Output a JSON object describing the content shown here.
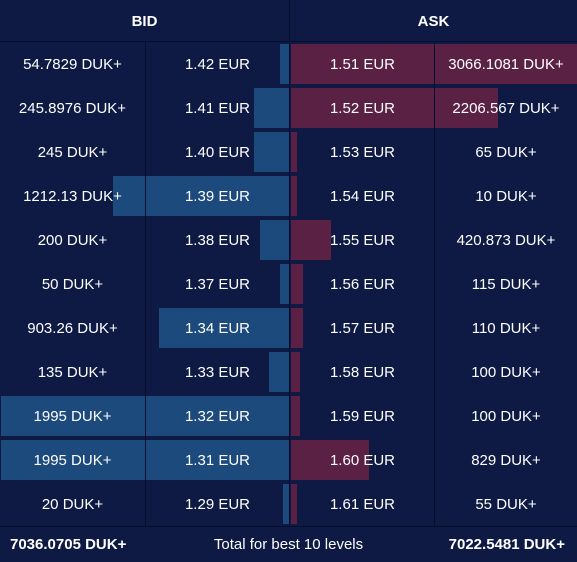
{
  "header": {
    "bid_label": "BID",
    "ask_label": "ASK"
  },
  "colors": {
    "background": "#0e1a44",
    "bid_bar": "#1c4a7c",
    "ask_bar": "#5a2145"
  },
  "rows": [
    {
      "bid_volume": "54.7829 DUK+",
      "bid_price": "1.42 EUR",
      "ask_price": "1.51 EUR",
      "ask_volume": "3066.1081 DUK+",
      "bid_depth": 0.03,
      "ask_depth": 1.0
    },
    {
      "bid_volume": "245.8976 DUK+",
      "bid_price": "1.41 EUR",
      "ask_price": "1.52 EUR",
      "ask_volume": "2206.567 DUK+",
      "bid_depth": 0.12,
      "ask_depth": 0.72
    },
    {
      "bid_volume": "245 DUK+",
      "bid_price": "1.40 EUR",
      "ask_price": "1.53 EUR",
      "ask_volume": "65 DUK+",
      "bid_depth": 0.12,
      "ask_depth": 0.02
    },
    {
      "bid_volume": "1212.13 DUK+",
      "bid_price": "1.39 EUR",
      "ask_price": "1.54 EUR",
      "ask_volume": "10 DUK+",
      "bid_depth": 0.61,
      "ask_depth": 0.0
    },
    {
      "bid_volume": "200 DUK+",
      "bid_price": "1.38 EUR",
      "ask_price": "1.55 EUR",
      "ask_volume": "420.873 DUK+",
      "bid_depth": 0.1,
      "ask_depth": 0.14
    },
    {
      "bid_volume": "50 DUK+",
      "bid_price": "1.37 EUR",
      "ask_price": "1.56 EUR",
      "ask_volume": "115 DUK+",
      "bid_depth": 0.03,
      "ask_depth": 0.04
    },
    {
      "bid_volume": "903.26 DUK+",
      "bid_price": "1.34 EUR",
      "ask_price": "1.57 EUR",
      "ask_volume": "110 DUK+",
      "bid_depth": 0.45,
      "ask_depth": 0.04
    },
    {
      "bid_volume": "135 DUK+",
      "bid_price": "1.33 EUR",
      "ask_price": "1.58 EUR",
      "ask_volume": "100 DUK+",
      "bid_depth": 0.07,
      "ask_depth": 0.03
    },
    {
      "bid_volume": "1995 DUK+",
      "bid_price": "1.32 EUR",
      "ask_price": "1.59 EUR",
      "ask_volume": "100 DUK+",
      "bid_depth": 1.0,
      "ask_depth": 0.03
    },
    {
      "bid_volume": "1995 DUK+",
      "bid_price": "1.31 EUR",
      "ask_price": "1.60 EUR",
      "ask_volume": "829 DUK+",
      "bid_depth": 1.0,
      "ask_depth": 0.27
    },
    {
      "bid_volume": "20 DUK+",
      "bid_price": "1.29 EUR",
      "ask_price": "1.61 EUR",
      "ask_volume": "55 DUK+",
      "bid_depth": 0.01,
      "ask_depth": 0.02
    }
  ],
  "footer": {
    "bid_total": "7036.0705 DUK+",
    "label": "Total for best 10 levels",
    "ask_total": "7022.5481 DUK+"
  }
}
